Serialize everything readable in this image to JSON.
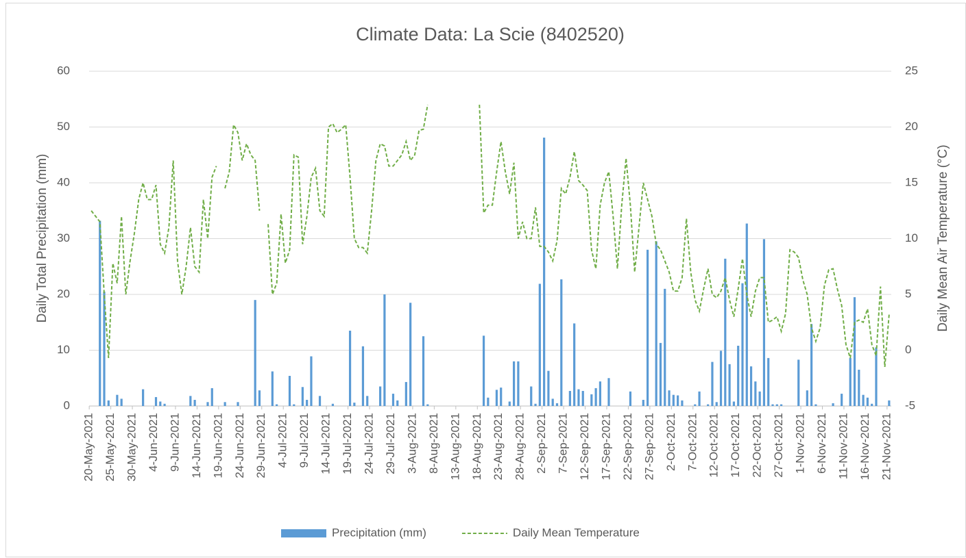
{
  "chart_data": {
    "type": "combo",
    "title": "Climate Data: La Scie (8402520)",
    "y_label": "Daily Total Precipitation (mm)",
    "y2_label": "Daily Mean Air Temperature (°C)",
    "ylim": [
      0,
      60
    ],
    "yticks": [
      0,
      10,
      20,
      30,
      40,
      50,
      60
    ],
    "y2lim": [
      -5,
      25
    ],
    "y2ticks": [
      -5,
      0,
      5,
      10,
      15,
      20,
      25
    ],
    "grid": true,
    "legend": "bottom",
    "categories": [
      "20-May-2021",
      null,
      null,
      null,
      null,
      "25-May-2021",
      null,
      null,
      null,
      null,
      "30-May-2021",
      null,
      null,
      null,
      null,
      "4-Jun-2021",
      null,
      null,
      null,
      null,
      "9-Jun-2021",
      null,
      null,
      null,
      null,
      "14-Jun-2021",
      null,
      null,
      null,
      null,
      "19-Jun-2021",
      null,
      null,
      null,
      null,
      "24-Jun-2021",
      null,
      null,
      null,
      null,
      "29-Jun-2021",
      null,
      null,
      null,
      null,
      "4-Jul-2021",
      null,
      null,
      null,
      null,
      "9-Jul-2021",
      null,
      null,
      null,
      null,
      "14-Jul-2021",
      null,
      null,
      null,
      null,
      "19-Jul-2021",
      null,
      null,
      null,
      null,
      "24-Jul-2021",
      null,
      null,
      null,
      null,
      "29-Jul-2021",
      null,
      null,
      null,
      null,
      "3-Aug-2021",
      null,
      null,
      null,
      null,
      "8-Aug-2021",
      null,
      null,
      null,
      null,
      "13-Aug-2021",
      null,
      null,
      null,
      null,
      "18-Aug-2021",
      null,
      null,
      null,
      null,
      "23-Aug-2021",
      null,
      null,
      null,
      null,
      "28-Aug-2021",
      null,
      null,
      null,
      null,
      "2-Sep-2021",
      null,
      null,
      null,
      null,
      "7-Sep-2021",
      null,
      null,
      null,
      null,
      "12-Sep-2021",
      null,
      null,
      null,
      null,
      "17-Sep-2021",
      null,
      null,
      null,
      null,
      "22-Sep-2021",
      null,
      null,
      null,
      null,
      "27-Sep-2021",
      null,
      null,
      null,
      null,
      "2-Oct-2021",
      null,
      null,
      null,
      null,
      "7-Oct-2021",
      null,
      null,
      null,
      null,
      "12-Oct-2021",
      null,
      null,
      null,
      null,
      "17-Oct-2021",
      null,
      null,
      null,
      null,
      "22-Oct-2021",
      null,
      null,
      null,
      null,
      "27-Oct-2021",
      null,
      null,
      null,
      null,
      "1-Nov-2021",
      null,
      null,
      null,
      null,
      "6-Nov-2021",
      null,
      null,
      null,
      null,
      "11-Nov-2021",
      null,
      null,
      null,
      null,
      "16-Nov-2021",
      null,
      null,
      null,
      null,
      "21-Nov-2021"
    ],
    "series": [
      {
        "name": "Precipitation (mm)",
        "type": "bar",
        "color": "#5b9bd5",
        "values": [
          0,
          0,
          33.2,
          20.5,
          1,
          0,
          2,
          1.3,
          0,
          0,
          0,
          0,
          3,
          0,
          0,
          1.6,
          0.8,
          0.4,
          0,
          0,
          0,
          0,
          0,
          1.8,
          1.1,
          0,
          0,
          0.7,
          3.2,
          0,
          0,
          0.7,
          0,
          0,
          0.7,
          0,
          0,
          0,
          19,
          2.8,
          0,
          0,
          6.2,
          0.3,
          0,
          0,
          5.4,
          0.3,
          0,
          3.4,
          1.1,
          8.9,
          0,
          1.8,
          0,
          0,
          0.4,
          0,
          0,
          0,
          13.5,
          0.6,
          0,
          10.7,
          1.8,
          0,
          0,
          3.5,
          20,
          0,
          2.2,
          1,
          0,
          4.3,
          18.5,
          0,
          0,
          12.5,
          0.3,
          null,
          null,
          null,
          null,
          null,
          null,
          null,
          null,
          null,
          null,
          null,
          0,
          12.6,
          1.5,
          0,
          2.9,
          3.3,
          0,
          0.8,
          8,
          8,
          0,
          0,
          3.5,
          0.4,
          21.9,
          48.1,
          6.3,
          1.3,
          0.5,
          22.7,
          0,
          2.7,
          14.8,
          3,
          2.7,
          0,
          2.1,
          3.2,
          4.4,
          0,
          5,
          0,
          0,
          0,
          0,
          2.6,
          0,
          0,
          1.1,
          28,
          0,
          29.5,
          11.3,
          21,
          2.8,
          2,
          1.9,
          1,
          0,
          0,
          0.3,
          2.6,
          0,
          0.3,
          7.9,
          0.7,
          9.9,
          26.4,
          7.5,
          0.8,
          10.8,
          22,
          32.7,
          7.1,
          4.4,
          2.6,
          29.9,
          8.6,
          0.3,
          0.3,
          0.3,
          0,
          0,
          0,
          8.3,
          0,
          2.8,
          14.7,
          0.3,
          0,
          0,
          0,
          0.5,
          0,
          2.2,
          0,
          8.6,
          19.5,
          6.5,
          2,
          1.5,
          0.4,
          10.5,
          0,
          0,
          1
        ]
      },
      {
        "name": "Daily Mean Temperature",
        "type": "line",
        "axis": "y2",
        "dashed": true,
        "color": "#70ad47",
        "values": [
          12.5,
          12,
          11.5,
          5,
          -0.7,
          7.8,
          6,
          12,
          5,
          8,
          10.5,
          13.5,
          15,
          13.5,
          13.5,
          14.8,
          9.5,
          8.7,
          11,
          17,
          8,
          5,
          7.5,
          11,
          7.5,
          7,
          13.5,
          10,
          15.5,
          16.5,
          null,
          14.5,
          16,
          20.2,
          19.5,
          17,
          18.5,
          17.5,
          17,
          12.5,
          null,
          11.3,
          5,
          6,
          12.2,
          7.8,
          9,
          17.5,
          17.3,
          9.5,
          12,
          15.5,
          16.3,
          12.5,
          12,
          20,
          20.3,
          19.5,
          19.8,
          20.2,
          15.5,
          10,
          9.2,
          9.2,
          8.7,
          12.5,
          17,
          18.5,
          18.3,
          16.5,
          16.5,
          17,
          17.5,
          18.7,
          17,
          17.5,
          19.7,
          19.8,
          22,
          null,
          null,
          null,
          null,
          null,
          null,
          null,
          null,
          null,
          null,
          null,
          22,
          12.3,
          13,
          13,
          16,
          18.7,
          16,
          14,
          16.8,
          10,
          11.5,
          10,
          10,
          12.8,
          9.3,
          9.3,
          8.8,
          8,
          9.8,
          14.5,
          14,
          15.5,
          17.8,
          15.2,
          14.8,
          14.3,
          9,
          7.3,
          13,
          15,
          16,
          12,
          7.3,
          13,
          17.2,
          13,
          7,
          11,
          15,
          13.5,
          12,
          9.5,
          9,
          8,
          7,
          5.3,
          5.3,
          6.5,
          11.8,
          7,
          4.5,
          3.5,
          5.5,
          7.3,
          5,
          4.7,
          5.3,
          6.5,
          4.5,
          3,
          5.5,
          8.2,
          5,
          3,
          5.3,
          6.5,
          6.5,
          2.5,
          2.7,
          3,
          1.7,
          3.3,
          9,
          8.8,
          8.3,
          6.3,
          5,
          2,
          0.8,
          2,
          5.8,
          7.2,
          7.3,
          5.5,
          4,
          0.5,
          -0.7,
          2.5,
          2.7,
          2.5,
          3.7,
          0.5,
          -0.5,
          5.7,
          -1.5,
          3.2
        ]
      }
    ]
  }
}
